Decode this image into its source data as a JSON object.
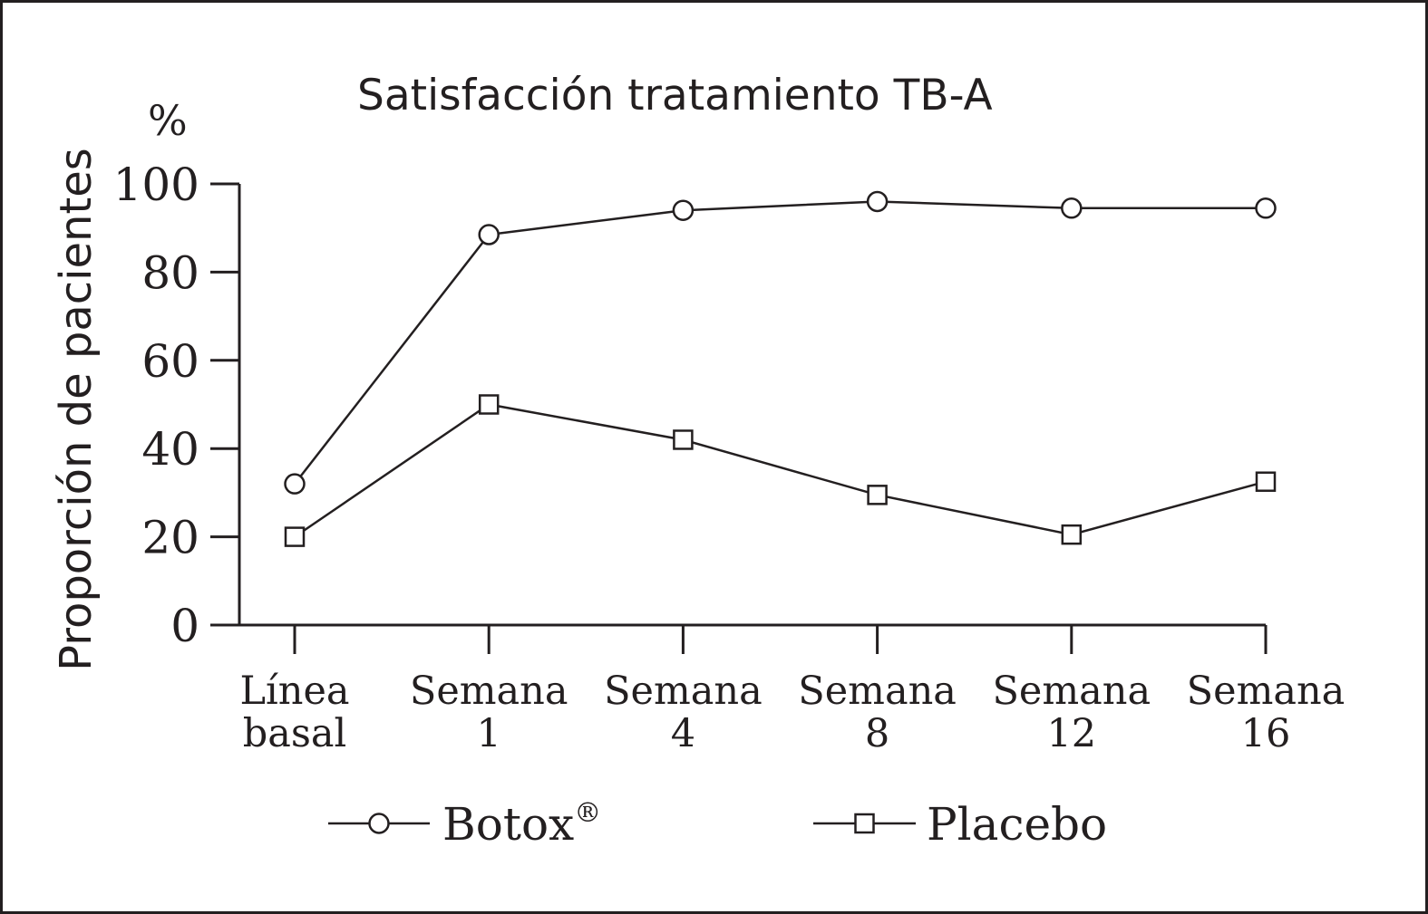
{
  "chart_data": {
    "type": "line",
    "title": "Satisfacción tratamiento TB-A",
    "unit_label": "%",
    "ylabel": "Proporción de pacientes",
    "xlabel": "",
    "ylim": [
      0,
      100
    ],
    "yticks": [
      "0",
      "20",
      "40",
      "60",
      "80",
      "100"
    ],
    "categories": [
      [
        "Línea",
        "basal"
      ],
      [
        "Semana",
        "1"
      ],
      [
        "Semana",
        "4"
      ],
      [
        "Semana",
        "8"
      ],
      [
        "Semana",
        "12"
      ],
      [
        "Semana",
        "16"
      ]
    ],
    "series": [
      {
        "name": "Botox",
        "name_sup": "®",
        "marker": "circle",
        "values": [
          32,
          88.5,
          94,
          96,
          94.5,
          94.5
        ]
      },
      {
        "name": "Placebo",
        "marker": "square",
        "values": [
          20,
          50,
          42,
          29.5,
          20.5,
          32.5
        ]
      }
    ],
    "grid": false,
    "legend_position": "bottom",
    "colors": {
      "ink": "#231f20",
      "background": "#ffffff"
    }
  }
}
